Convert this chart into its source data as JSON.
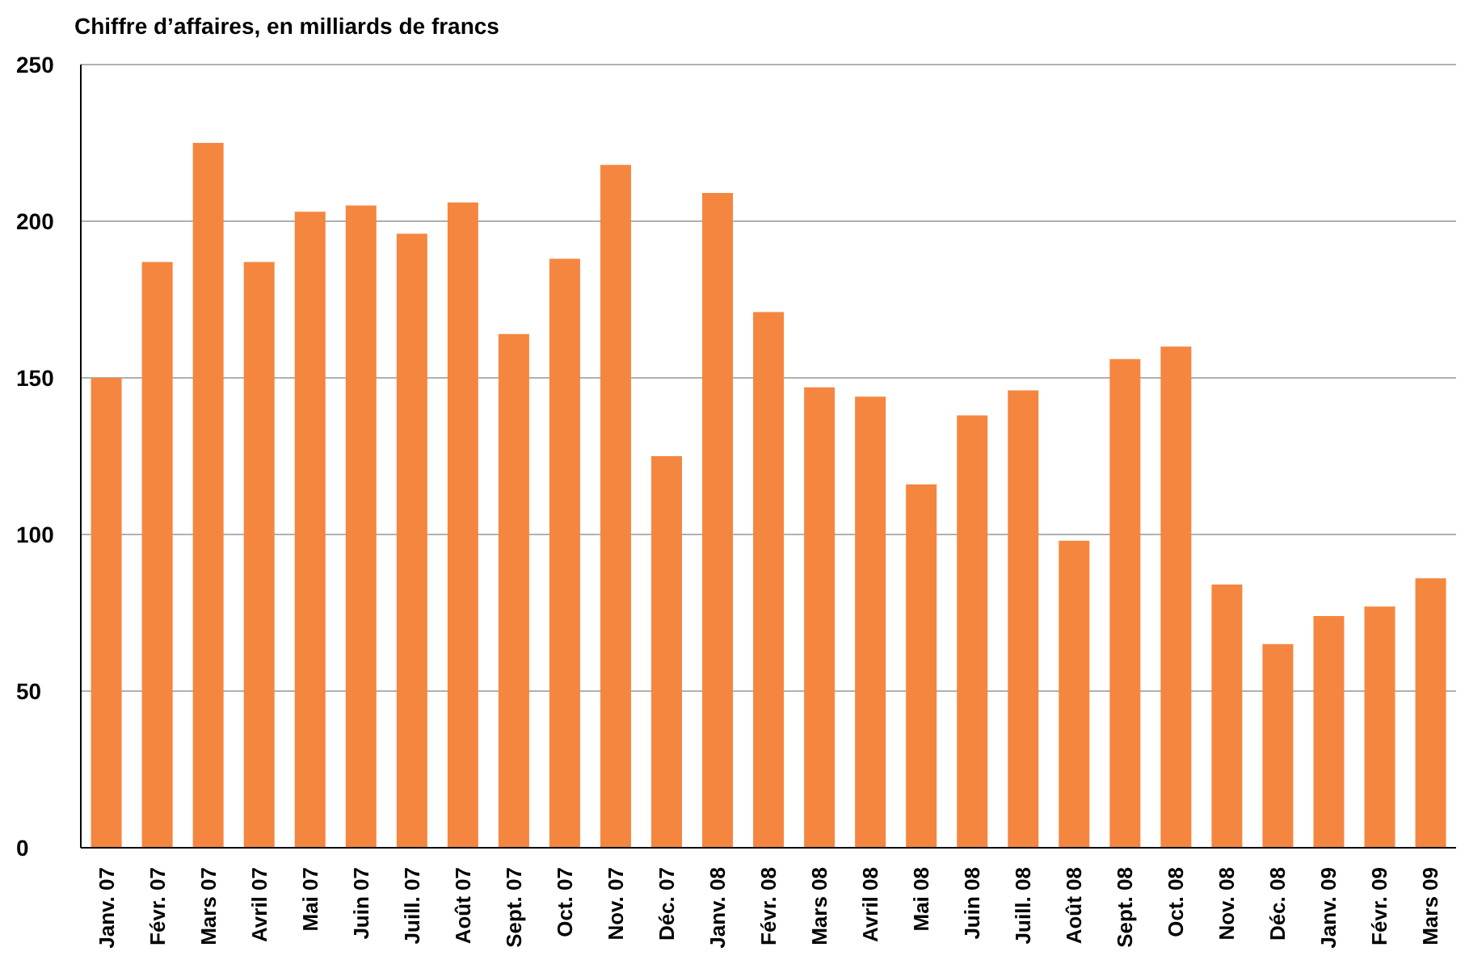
{
  "chart_data": {
    "type": "bar",
    "title": "Chiffre d’affaires, en milliards de francs",
    "categories": [
      "Janv. 07",
      "Févr. 07",
      "Mars 07",
      "Avril 07",
      "Mai 07",
      "Juin 07",
      "Juill. 07",
      "Août 07",
      "Sept. 07",
      "Oct. 07",
      "Nov. 07",
      "Déc. 07",
      "Janv. 08",
      "Févr. 08",
      "Mars 08",
      "Avril 08",
      "Mai 08",
      "Juin 08",
      "Juill. 08",
      "Août 08",
      "Sept. 08",
      "Oct. 08",
      "Nov. 08",
      "Déc. 08",
      "Janv. 09",
      "Févr. 09",
      "Mars 09"
    ],
    "values": [
      150,
      187,
      225,
      187,
      203,
      205,
      196,
      206,
      164,
      188,
      218,
      125,
      209,
      171,
      147,
      144,
      116,
      138,
      146,
      98,
      156,
      160,
      84,
      65,
      74,
      77,
      86
    ],
    "color": "#f5863f",
    "ylim": [
      0,
      250
    ],
    "yticks": [
      0,
      50,
      100,
      150,
      200,
      250
    ],
    "grid": "y"
  }
}
